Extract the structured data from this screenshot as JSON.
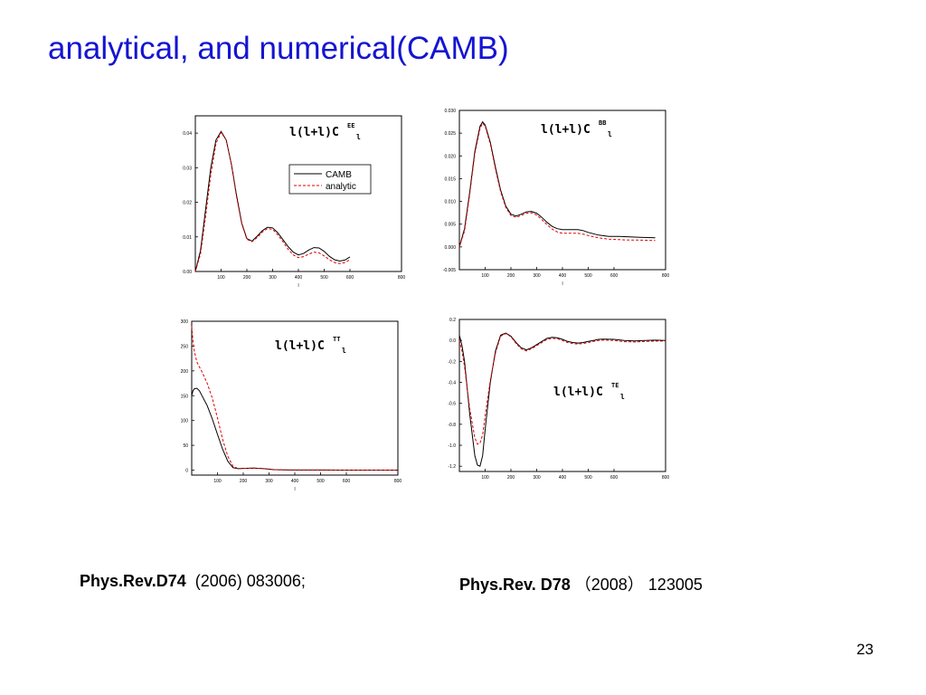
{
  "slide": {
    "title": "analytical, and numerical(CAMB)",
    "page_number": "23"
  },
  "references": [
    {
      "journal": "Phys.Rev.D74",
      "detail": "(2006) 083006;"
    },
    {
      "journal": "Phys.Rev. D78",
      "detail": "（2008）  123005"
    }
  ],
  "colors": {
    "title": "#1414d2",
    "camb": "#000000",
    "analytic": "#e00000"
  },
  "chart_data": [
    {
      "type": "line",
      "panel": "top-left",
      "label": {
        "main": "l(l+l)C",
        "sup": "EE",
        "sub": "l"
      },
      "xlabel": "l",
      "xlim": [
        0,
        800
      ],
      "ylim": [
        0,
        0.045
      ],
      "xticks": [
        100,
        200,
        300,
        400,
        500,
        600,
        800
      ],
      "xtick_labels": [
        "100",
        "200",
        "300",
        "400",
        "500",
        "600",
        "800"
      ],
      "yticks": [
        0,
        0.01,
        0.02,
        0.03,
        0.04
      ],
      "ytick_labels": [
        "0.00",
        "0.01",
        "0.02",
        "0.03",
        "0.04"
      ],
      "legend": {
        "position": "top-right",
        "entries": [
          "CAMB",
          "analytic"
        ]
      },
      "series": [
        {
          "name": "CAMB",
          "style": "solid",
          "x": [
            0,
            20,
            40,
            60,
            80,
            100,
            120,
            140,
            160,
            180,
            200,
            220,
            240,
            260,
            280,
            300,
            320,
            340,
            360,
            380,
            400,
            420,
            440,
            460,
            480,
            500,
            520,
            540,
            560,
            580,
            600
          ],
          "y": [
            0,
            0.006,
            0.018,
            0.03,
            0.038,
            0.0405,
            0.038,
            0.031,
            0.022,
            0.014,
            0.0095,
            0.0088,
            0.0102,
            0.0118,
            0.0128,
            0.0126,
            0.0112,
            0.0092,
            0.0072,
            0.0056,
            0.0048,
            0.0052,
            0.0062,
            0.0069,
            0.0068,
            0.0058,
            0.0044,
            0.0034,
            0.003,
            0.0033,
            0.0042
          ]
        },
        {
          "name": "analytic",
          "style": "dashed",
          "x": [
            0,
            20,
            40,
            60,
            80,
            100,
            120,
            140,
            160,
            180,
            200,
            220,
            240,
            260,
            280,
            300,
            320,
            340,
            360,
            380,
            400,
            420,
            440,
            460,
            480,
            500,
            520,
            540,
            560,
            580,
            600
          ],
          "y": [
            0,
            0.005,
            0.016,
            0.028,
            0.037,
            0.0402,
            0.038,
            0.031,
            0.0215,
            0.0138,
            0.0093,
            0.0086,
            0.0098,
            0.0114,
            0.0124,
            0.0122,
            0.0106,
            0.0086,
            0.0064,
            0.0048,
            0.004,
            0.0043,
            0.005,
            0.0056,
            0.0054,
            0.0045,
            0.0034,
            0.0026,
            0.0023,
            0.0026,
            0.0034
          ]
        }
      ]
    },
    {
      "type": "line",
      "panel": "top-right",
      "label": {
        "main": "l(l+l)C",
        "sup": "BB",
        "sub": "l"
      },
      "xlabel": "l",
      "xlim": [
        0,
        800
      ],
      "ylim": [
        -0.005,
        0.03
      ],
      "xticks": [
        100,
        200,
        300,
        400,
        500,
        600,
        800
      ],
      "xtick_labels": [
        "100",
        "200",
        "300",
        "400",
        "500",
        "600",
        "800"
      ],
      "yticks": [
        -0.005,
        0,
        0.005,
        0.01,
        0.015,
        0.02,
        0.025,
        0.03
      ],
      "ytick_labels": [
        "-0.005",
        "0.000",
        "0.005",
        "0.010",
        "0.015",
        "0.020",
        "0.025",
        "0.030"
      ],
      "series": [
        {
          "name": "CAMB",
          "style": "solid",
          "x": [
            0,
            20,
            40,
            60,
            80,
            90,
            100,
            120,
            140,
            160,
            180,
            200,
            220,
            240,
            260,
            280,
            300,
            320,
            340,
            360,
            380,
            400,
            420,
            440,
            460,
            480,
            500,
            540,
            580,
            620,
            660,
            700,
            760
          ],
          "y": [
            0,
            0.004,
            0.012,
            0.021,
            0.0265,
            0.0275,
            0.0268,
            0.023,
            0.0175,
            0.0125,
            0.009,
            0.0072,
            0.0068,
            0.0072,
            0.0077,
            0.0078,
            0.0074,
            0.0065,
            0.0054,
            0.0045,
            0.004,
            0.0038,
            0.0038,
            0.0038,
            0.0038,
            0.0036,
            0.0032,
            0.0026,
            0.0023,
            0.0023,
            0.0022,
            0.0021,
            0.002
          ]
        },
        {
          "name": "analytic",
          "style": "dashed",
          "x": [
            0,
            20,
            40,
            60,
            80,
            90,
            100,
            120,
            140,
            160,
            180,
            200,
            220,
            240,
            260,
            280,
            300,
            320,
            340,
            360,
            380,
            400,
            420,
            440,
            460,
            480,
            500,
            540,
            580,
            620,
            660,
            700,
            760
          ],
          "y": [
            0,
            0.0035,
            0.0115,
            0.0205,
            0.026,
            0.0272,
            0.0265,
            0.0226,
            0.0171,
            0.0121,
            0.0087,
            0.0069,
            0.0065,
            0.0069,
            0.0074,
            0.0075,
            0.007,
            0.006,
            0.0049,
            0.0039,
            0.0033,
            0.003,
            0.003,
            0.003,
            0.003,
            0.0028,
            0.0025,
            0.002,
            0.0017,
            0.0016,
            0.0015,
            0.0015,
            0.0014
          ]
        }
      ]
    },
    {
      "type": "line",
      "panel": "bottom-left",
      "label": {
        "main": "l(l+l)C",
        "sup": "TT",
        "sub": "l"
      },
      "xlabel": "l",
      "xlim": [
        0,
        800
      ],
      "ylim": [
        -10,
        300
      ],
      "xticks": [
        100,
        200,
        300,
        400,
        500,
        600,
        800
      ],
      "xtick_labels": [
        "100",
        "200",
        "300",
        "400",
        "500",
        "600",
        "800"
      ],
      "yticks": [
        0,
        50,
        100,
        150,
        200,
        250,
        300
      ],
      "ytick_labels": [
        "0",
        "50",
        "100",
        "150",
        "200",
        "250",
        "300"
      ],
      "series": [
        {
          "name": "CAMB",
          "style": "solid",
          "x": [
            0,
            5,
            10,
            20,
            30,
            40,
            60,
            80,
            100,
            120,
            140,
            160,
            180,
            200,
            240,
            280,
            320,
            360,
            400,
            500,
            600,
            700,
            800
          ],
          "y": [
            150,
            160,
            164,
            165,
            160,
            150,
            130,
            103,
            72,
            42,
            18,
            5,
            3,
            3.5,
            4,
            3,
            1,
            0.5,
            0.3,
            0.2,
            0.1,
            0.1,
            0.1
          ]
        },
        {
          "name": "analytic",
          "style": "dashed",
          "x": [
            0,
            5,
            10,
            20,
            30,
            40,
            60,
            80,
            100,
            120,
            140,
            160,
            180,
            200,
            240,
            280,
            320,
            360,
            400,
            500,
            600,
            700,
            800
          ],
          "y": [
            290,
            260,
            240,
            218,
            208,
            198,
            175,
            145,
            105,
            62,
            28,
            8,
            3,
            3.5,
            4,
            3,
            1,
            0.5,
            0.3,
            0.2,
            0.1,
            0.1,
            0.1
          ]
        }
      ]
    },
    {
      "type": "line",
      "panel": "bottom-right",
      "label": {
        "main": "l(l+l)C",
        "sup": "TE",
        "sub": "l"
      },
      "xlabel": "",
      "xlim": [
        0,
        800
      ],
      "ylim": [
        -1.25,
        0.2
      ],
      "xticks": [
        100,
        200,
        300,
        400,
        500,
        600,
        800
      ],
      "xtick_labels": [
        "100",
        "200",
        "300",
        "400",
        "500",
        "600",
        "800"
      ],
      "yticks": [
        -1.2,
        -1.0,
        -0.8,
        -0.6,
        -0.4,
        -0.2,
        0.0,
        0.2
      ],
      "ytick_labels": [
        "-1.2",
        "-1.0",
        "-0.8",
        "-0.6",
        "-0.4",
        "-0.2",
        "0.0",
        "0.2"
      ],
      "series": [
        {
          "name": "CAMB",
          "style": "solid",
          "x": [
            0,
            10,
            20,
            40,
            60,
            70,
            80,
            90,
            100,
            120,
            140,
            160,
            180,
            200,
            220,
            240,
            260,
            280,
            300,
            320,
            340,
            360,
            380,
            400,
            420,
            440,
            460,
            480,
            500,
            520,
            540,
            560,
            600,
            640,
            680,
            720,
            760,
            800
          ],
          "y": [
            0.05,
            -0.05,
            -0.2,
            -0.7,
            -1.1,
            -1.19,
            -1.2,
            -1.1,
            -0.85,
            -0.4,
            -0.1,
            0.05,
            0.07,
            0.04,
            -0.02,
            -0.07,
            -0.09,
            -0.07,
            -0.04,
            -0.01,
            0.02,
            0.03,
            0.025,
            0.01,
            -0.01,
            -0.02,
            -0.025,
            -0.02,
            -0.01,
            0,
            0.01,
            0.012,
            0.01,
            0,
            -0.005,
            0,
            0.002,
            0
          ]
        },
        {
          "name": "analytic",
          "style": "dashed",
          "x": [
            0,
            10,
            20,
            40,
            60,
            70,
            80,
            90,
            100,
            120,
            140,
            160,
            180,
            200,
            220,
            240,
            260,
            280,
            300,
            320,
            340,
            360,
            380,
            400,
            420,
            440,
            460,
            480,
            500,
            520,
            540,
            560,
            600,
            640,
            680,
            720,
            760,
            800
          ],
          "y": [
            0.0,
            -0.1,
            -0.25,
            -0.65,
            -0.93,
            -0.99,
            -0.98,
            -0.9,
            -0.72,
            -0.38,
            -0.12,
            0.04,
            0.065,
            0.035,
            -0.03,
            -0.08,
            -0.1,
            -0.08,
            -0.05,
            -0.02,
            0.01,
            0.02,
            0.015,
            0,
            -0.02,
            -0.03,
            -0.035,
            -0.03,
            -0.02,
            -0.01,
            0,
            0.003,
            0,
            -0.012,
            -0.015,
            -0.01,
            -0.006,
            -0.005
          ]
        }
      ]
    }
  ]
}
